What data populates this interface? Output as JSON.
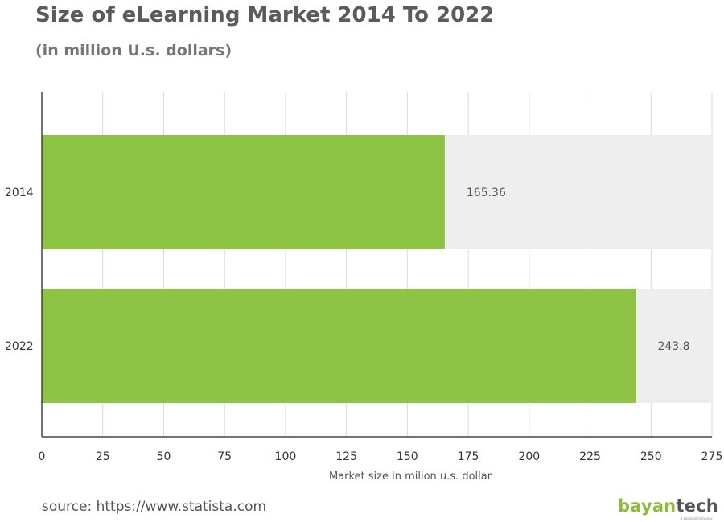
{
  "title": "Size of eLearning Market 2014 To 2022",
  "subtitle": "(in million U.s. dollars)",
  "source": "source: https://www.statista.com",
  "logo": {
    "part1": "bayan",
    "part2": "tech",
    "tagline": "a Logixcal company"
  },
  "colors": {
    "bar": "#8fc346",
    "track": "#eeeeee",
    "grid": "#d9d9d9",
    "axis": "#444444",
    "label": "#333333",
    "brand_green": "#8dbb3f"
  },
  "chart_data": {
    "type": "bar",
    "orientation": "horizontal",
    "categories": [
      "2014",
      "2022"
    ],
    "values": [
      165.36,
      243.8
    ],
    "data_labels": [
      "165.36",
      "243.8"
    ],
    "xlabel": "Market size in milion u.s. dollar",
    "ylabel": "",
    "xlim": [
      0,
      275
    ],
    "xticks": [
      0,
      25,
      50,
      75,
      100,
      125,
      150,
      175,
      200,
      225,
      250,
      275
    ],
    "grid": true,
    "legend": "none"
  }
}
